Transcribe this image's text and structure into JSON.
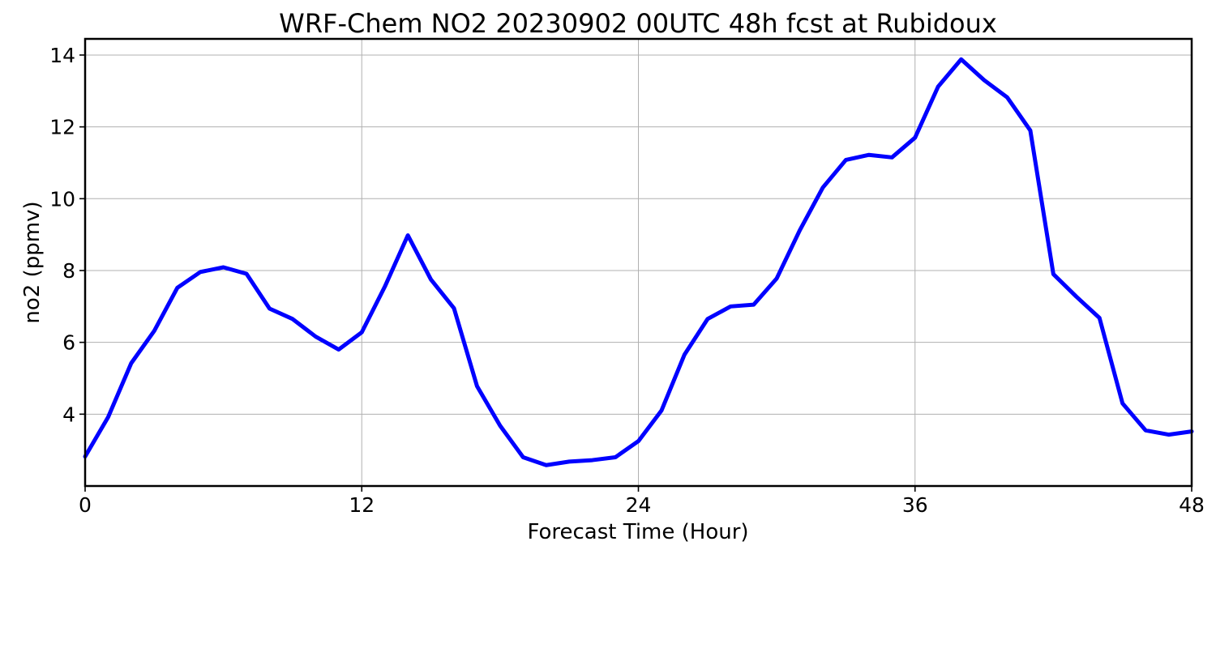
{
  "chart_data": {
    "type": "line",
    "title": "WRF-Chem NO2  20230902 00UTC 48h fcst at Rubidoux",
    "xlabel": "Forecast Time (Hour)",
    "ylabel": "no2  (ppmv)",
    "xlim": [
      0,
      48
    ],
    "ylim": [
      2.0,
      14.45
    ],
    "xticks": [
      0,
      12,
      24,
      36,
      48
    ],
    "yticks": [
      4,
      6,
      8,
      10,
      12,
      14
    ],
    "grid": true,
    "series_color": "#0000ff",
    "x": [
      0,
      1,
      2,
      3,
      4,
      5,
      6,
      7,
      8,
      9,
      10,
      11,
      12,
      13,
      14,
      15,
      16,
      17,
      18,
      19,
      20,
      21,
      22,
      23,
      24,
      25,
      26,
      27,
      28,
      29,
      30,
      31,
      32,
      33,
      34,
      35,
      36,
      37,
      38,
      39,
      40,
      41,
      42,
      43,
      44,
      45,
      46,
      47,
      48
    ],
    "y": [
      2.82,
      3.92,
      5.42,
      6.32,
      7.52,
      7.96,
      8.09,
      7.91,
      6.94,
      6.65,
      6.16,
      5.8,
      6.28,
      7.55,
      8.98,
      7.75,
      6.95,
      4.78,
      3.68,
      2.8,
      2.58,
      2.68,
      2.72,
      2.8,
      3.25,
      4.1,
      5.66,
      6.65,
      7.0,
      7.05,
      7.78,
      9.12,
      10.31,
      11.08,
      11.22,
      11.15,
      11.7,
      13.12,
      13.88,
      13.3,
      12.82,
      11.9,
      7.9,
      7.27,
      6.68,
      4.3,
      3.55,
      3.43,
      3.52
    ]
  }
}
